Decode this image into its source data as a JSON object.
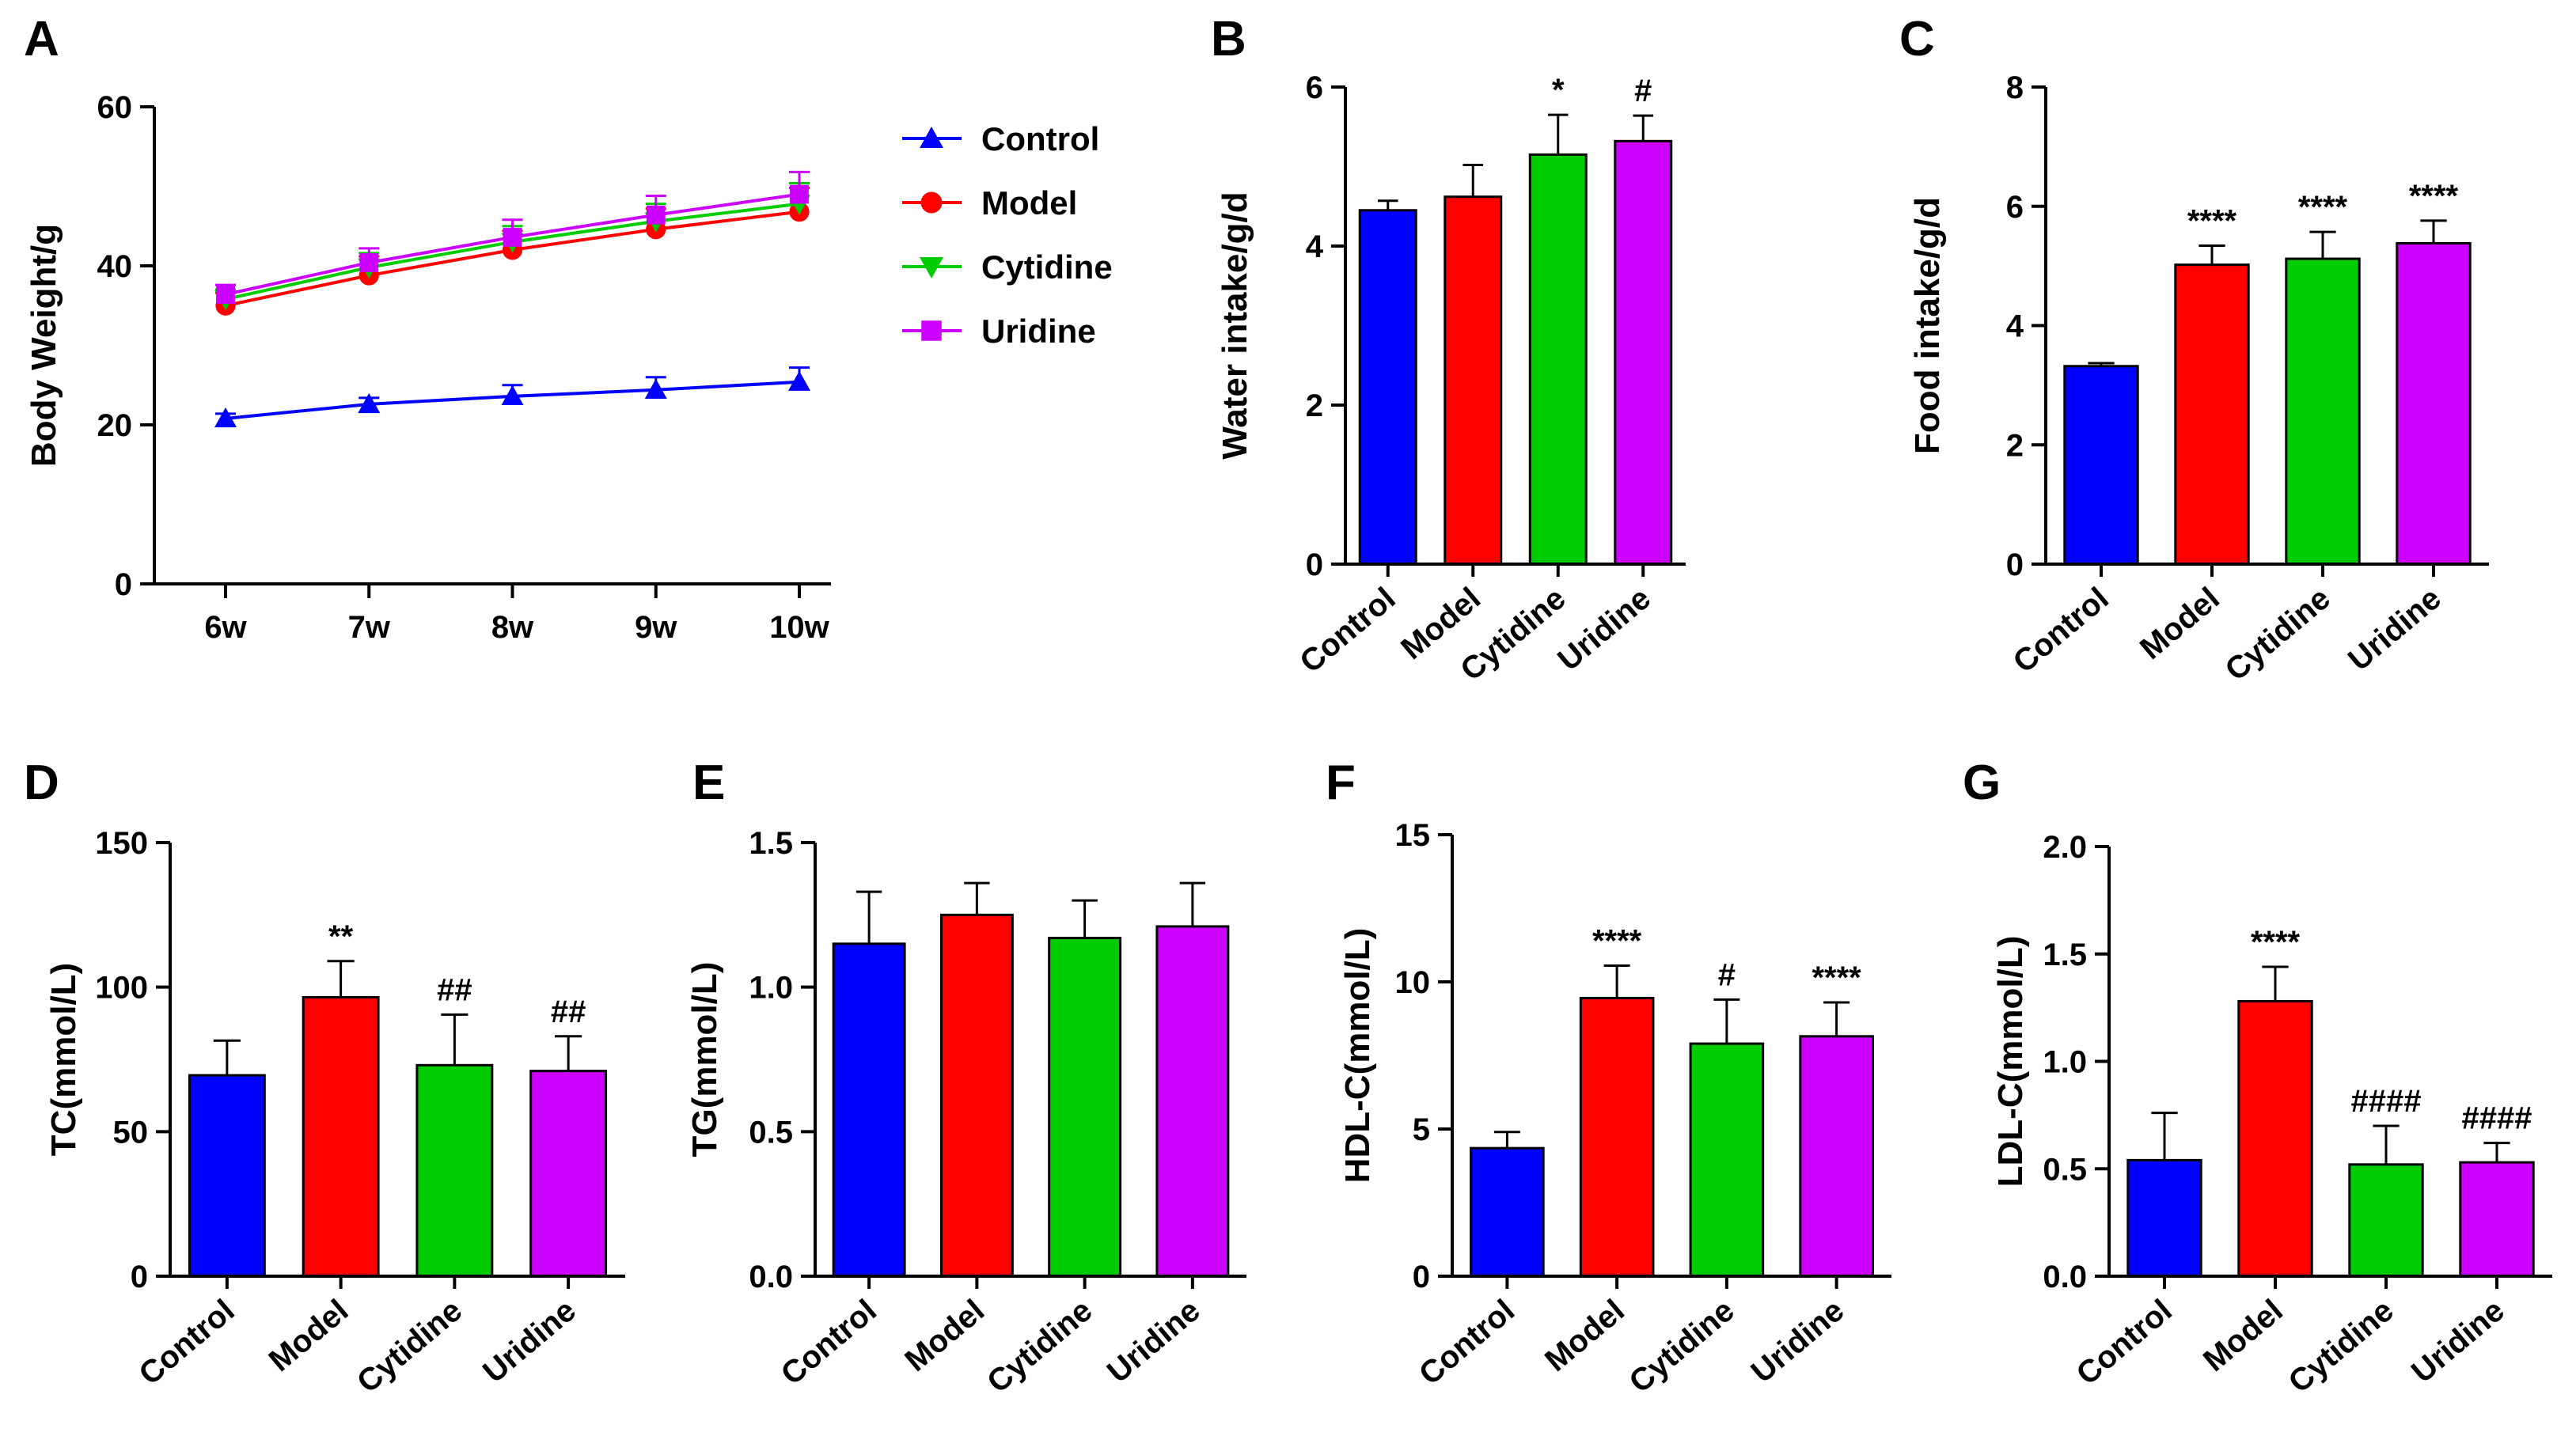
{
  "chart_data": [
    {
      "id": "A",
      "panel_label": "A",
      "type": "line",
      "ylabel": "Body Weight/g",
      "xlabel": "",
      "categories": [
        "6w",
        "7w",
        "8w",
        "9w",
        "10w"
      ],
      "ylim": [
        0,
        60
      ],
      "yticks": [
        0,
        20,
        40,
        60
      ],
      "legend_position": "right",
      "series": [
        {
          "name": "Control",
          "color": "#0000ff",
          "marker": "triangle-up",
          "values": [
            20.8,
            22.6,
            23.6,
            24.4,
            25.4
          ],
          "errors": [
            0.6,
            0.8,
            1.4,
            1.6,
            1.8
          ]
        },
        {
          "name": "Model",
          "color": "#ff0000",
          "marker": "circle",
          "values": [
            35.0,
            38.8,
            42.0,
            44.6,
            46.8
          ],
          "errors": [
            1.6,
            2.4,
            2.4,
            2.6,
            3.0
          ]
        },
        {
          "name": "Cytidine",
          "color": "#00cc00",
          "marker": "triangle-down",
          "values": [
            35.8,
            39.8,
            43.0,
            45.6,
            47.8
          ],
          "errors": [
            1.2,
            1.8,
            2.0,
            2.2,
            2.6
          ]
        },
        {
          "name": "Uridine",
          "color": "#cc00ff",
          "marker": "square",
          "values": [
            36.4,
            40.4,
            43.6,
            46.4,
            49.0
          ],
          "errors": [
            1.2,
            1.8,
            2.2,
            2.4,
            2.8
          ]
        }
      ]
    },
    {
      "id": "B",
      "panel_label": "B",
      "type": "bar",
      "ylabel": "Water intake/g/d",
      "categories": [
        "Control",
        "Model",
        "Cytidine",
        "Uridine"
      ],
      "colors": [
        "#0000ff",
        "#ff0000",
        "#00cc00",
        "#cc00ff"
      ],
      "values": [
        4.45,
        4.62,
        5.15,
        5.32
      ],
      "errors": [
        0.12,
        0.4,
        0.5,
        0.32
      ],
      "ylim": [
        0,
        6
      ],
      "yticks": [
        0,
        2,
        4,
        6
      ],
      "ytick_labels": [
        "0",
        "2",
        "4",
        "6"
      ],
      "annotations": [
        "",
        "",
        "*",
        "#"
      ]
    },
    {
      "id": "C",
      "panel_label": "C",
      "type": "bar",
      "ylabel": "Food intake/g/d",
      "categories": [
        "Control",
        "Model",
        "Cytidine",
        "Uridine"
      ],
      "colors": [
        "#0000ff",
        "#ff0000",
        "#00cc00",
        "#cc00ff"
      ],
      "values": [
        3.32,
        5.02,
        5.12,
        5.38
      ],
      "errors": [
        0.05,
        0.32,
        0.45,
        0.38
      ],
      "ylim": [
        0,
        8
      ],
      "yticks": [
        0,
        2,
        4,
        6,
        8
      ],
      "ytick_labels": [
        "0",
        "2",
        "4",
        "6",
        "8"
      ],
      "annotations": [
        "",
        "****",
        "****",
        "****"
      ]
    },
    {
      "id": "D",
      "panel_label": "D",
      "type": "bar",
      "ylabel": "TC(mmol/L)",
      "categories": [
        "Control",
        "Model",
        "Cytidine",
        "Uridine"
      ],
      "colors": [
        "#0000ff",
        "#ff0000",
        "#00cc00",
        "#cc00ff"
      ],
      "values": [
        69.5,
        96.5,
        73.0,
        71.0
      ],
      "errors": [
        12.0,
        12.5,
        17.5,
        12.0
      ],
      "ylim": [
        0,
        150
      ],
      "yticks": [
        0,
        50,
        100,
        150
      ],
      "ytick_labels": [
        "0",
        "50",
        "100",
        "150"
      ],
      "annotations": [
        "",
        "**",
        "##",
        "##"
      ]
    },
    {
      "id": "E",
      "panel_label": "E",
      "type": "bar",
      "ylabel": "TG(mmol/L)",
      "categories": [
        "Control",
        "Model",
        "Cytidine",
        "Uridine"
      ],
      "colors": [
        "#0000ff",
        "#ff0000",
        "#00cc00",
        "#cc00ff"
      ],
      "values": [
        1.15,
        1.25,
        1.17,
        1.21
      ],
      "errors": [
        0.18,
        0.11,
        0.13,
        0.15
      ],
      "ylim": [
        0,
        1.5
      ],
      "yticks": [
        0,
        0.5,
        1.0,
        1.5
      ],
      "ytick_labels": [
        "0.0",
        "0.5",
        "1.0",
        "1.5"
      ],
      "annotations": [
        "",
        "",
        "",
        ""
      ]
    },
    {
      "id": "F",
      "panel_label": "F",
      "type": "bar",
      "ylabel": "HDL-C(mmol/L)",
      "categories": [
        "Control",
        "Model",
        "Cytidine",
        "Uridine"
      ],
      "colors": [
        "#0000ff",
        "#ff0000",
        "#00cc00",
        "#cc00ff"
      ],
      "values": [
        4.35,
        9.45,
        7.9,
        8.15
      ],
      "errors": [
        0.55,
        1.1,
        1.5,
        1.15
      ],
      "ylim": [
        0,
        15
      ],
      "yticks": [
        0,
        5,
        10,
        15
      ],
      "ytick_labels": [
        "0",
        "5",
        "10",
        "15"
      ],
      "annotations": [
        "",
        "****",
        "#",
        "****"
      ]
    },
    {
      "id": "G",
      "panel_label": "G",
      "type": "bar",
      "ylabel": "LDL-C(mmol/L)",
      "categories": [
        "Control",
        "Model",
        "Cytidine",
        "Uridine"
      ],
      "colors": [
        "#0000ff",
        "#ff0000",
        "#00cc00",
        "#cc00ff"
      ],
      "values": [
        0.54,
        1.28,
        0.52,
        0.53
      ],
      "errors": [
        0.22,
        0.16,
        0.18,
        0.09
      ],
      "ylim": [
        0,
        2.0
      ],
      "yticks": [
        0,
        0.5,
        1.0,
        1.5,
        2.0
      ],
      "ytick_labels": [
        "0.0",
        "0.5",
        "1.0",
        "1.5",
        "2.0"
      ],
      "annotations": [
        "",
        "****",
        "####",
        "####"
      ]
    }
  ]
}
